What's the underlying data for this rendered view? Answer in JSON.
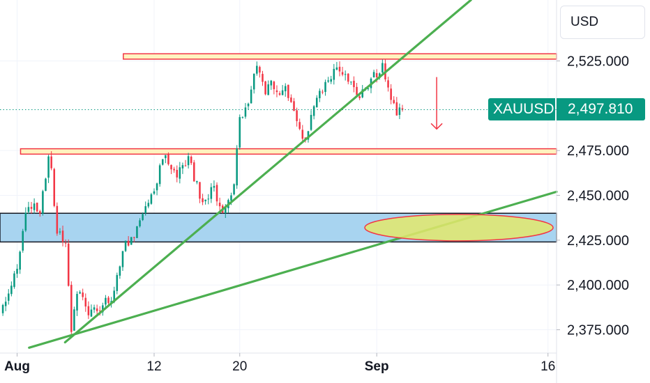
{
  "header": {
    "currency": "USD"
  },
  "quote": {
    "symbol": "XAUUSD",
    "last_price_label": "2,497.810",
    "last_price": 2497.81
  },
  "colors": {
    "up": "#089981",
    "down": "#f23645",
    "trendline": "#4caf50",
    "resistance_fill": "#fff3bf",
    "resistance_border": "#f23645",
    "demand_zone_fill": "#a8d4f0",
    "target_ellipse_fill": "#e3e86b",
    "arrow": "#f23645"
  },
  "chart_data": {
    "type": "candlestick",
    "instrument": "XAUUSD",
    "xlabel": "",
    "ylabel": "",
    "x_ticks": [
      "Aug",
      "12",
      "20",
      "Sep",
      "16"
    ],
    "y_ticks": [
      "2,525.000",
      "2,475.000",
      "2,450.000",
      "2,425.000",
      "2,400.000",
      "2,375.000"
    ],
    "ylim": [
      2362,
      2559
    ],
    "x_range_sessions": [
      0,
      32.5
    ],
    "x_tick_sessions": [
      1,
      9,
      14,
      22,
      32
    ],
    "candle_interval": "4h",
    "anchors": [
      [
        0,
        2384
      ],
      [
        1,
        2408
      ],
      [
        1.6,
        2447
      ],
      [
        2.3,
        2440
      ],
      [
        2.9,
        2475
      ],
      [
        3.3,
        2432
      ],
      [
        3.9,
        2423
      ],
      [
        4.1,
        2370
      ],
      [
        4.5,
        2398
      ],
      [
        5.2,
        2384
      ],
      [
        5.7,
        2386
      ],
      [
        6.6,
        2395
      ],
      [
        7.2,
        2420
      ],
      [
        8.1,
        2432
      ],
      [
        8.8,
        2448
      ],
      [
        9.6,
        2473
      ],
      [
        10.3,
        2461
      ],
      [
        11.0,
        2470
      ],
      [
        11.5,
        2455
      ],
      [
        11.9,
        2442
      ],
      [
        12.4,
        2455
      ],
      [
        13.0,
        2442
      ],
      [
        13.6,
        2450
      ],
      [
        14.0,
        2493
      ],
      [
        14.6,
        2503
      ],
      [
        15.0,
        2525
      ],
      [
        15.4,
        2508
      ],
      [
        15.8,
        2512
      ],
      [
        16.3,
        2505
      ],
      [
        16.7,
        2510
      ],
      [
        17.3,
        2490
      ],
      [
        17.8,
        2480
      ],
      [
        18.3,
        2500
      ],
      [
        18.7,
        2507
      ],
      [
        19.3,
        2517
      ],
      [
        19.9,
        2520
      ],
      [
        20.5,
        2514
      ],
      [
        20.9,
        2502
      ],
      [
        21.3,
        2510
      ],
      [
        21.7,
        2515
      ],
      [
        22.3,
        2522
      ],
      [
        22.7,
        2510
      ],
      [
        23.1,
        2497
      ],
      [
        23.6,
        2497
      ]
    ],
    "annotations": {
      "resistance_zones": [
        {
          "session_start": 7.2,
          "y_low": 2526,
          "y_high": 2529
        },
        {
          "session_start": 1.2,
          "y_low": 2473,
          "y_high": 2476
        }
      ],
      "demand_zone": {
        "y_low": 2424,
        "y_high": 2440
      },
      "trendlines": [
        {
          "from": [
            3.8,
            2368
          ],
          "to": [
            27.5,
            2559
          ]
        },
        {
          "from": [
            1.7,
            2365
          ],
          "to": [
            32.5,
            2452
          ]
        }
      ],
      "target_ellipse": {
        "session_center": 26.8,
        "y_center": 2432
      },
      "down_arrow": {
        "session": 25.5,
        "from": 2516,
        "to": 2487
      }
    }
  }
}
